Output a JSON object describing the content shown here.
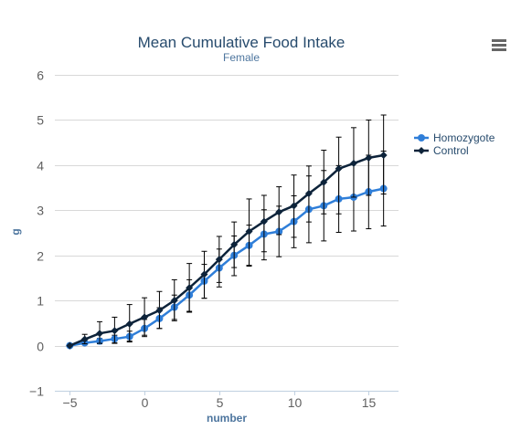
{
  "chart_data": {
    "type": "line",
    "title": "Mean Cumulative Food Intake",
    "subtitle": "Female",
    "xlabel": "number",
    "ylabel": "g",
    "xlim": [
      -6,
      17
    ],
    "ylim": [
      -1,
      6
    ],
    "xticks": [
      -5,
      0,
      5,
      10,
      15
    ],
    "yticks": [
      -1,
      0,
      1,
      2,
      3,
      4,
      5,
      6
    ],
    "grid": "horizontal",
    "legend_position": "right",
    "series": [
      {
        "name": "Homozygote",
        "color": "#2f7ed8",
        "marker": "circle",
        "x": [
          -5,
          -4,
          -3,
          -2,
          -1,
          0,
          1,
          2,
          3,
          4,
          5,
          6,
          7,
          8,
          9,
          10,
          11,
          12,
          13,
          14,
          15,
          16
        ],
        "y": [
          0.0,
          0.06,
          0.1,
          0.15,
          0.2,
          0.38,
          0.6,
          0.85,
          1.12,
          1.43,
          1.72,
          2.0,
          2.22,
          2.47,
          2.53,
          2.75,
          3.02,
          3.1,
          3.25,
          3.29,
          3.41,
          3.48
        ],
        "err_low": [
          0.0,
          0.02,
          0.04,
          0.06,
          0.08,
          0.2,
          0.38,
          0.58,
          0.76,
          1.05,
          1.3,
          1.55,
          1.76,
          1.9,
          1.97,
          2.17,
          2.28,
          2.32,
          2.51,
          2.54,
          2.59,
          2.65
        ],
        "err_high": [
          0.0,
          0.1,
          0.16,
          0.23,
          0.32,
          0.58,
          0.84,
          1.12,
          1.46,
          1.8,
          2.14,
          2.43,
          2.67,
          3.01,
          3.09,
          3.32,
          3.76,
          3.88,
          3.99,
          4.04,
          4.22,
          4.31
        ]
      },
      {
        "name": "Control",
        "color": "#0d233a",
        "marker": "diamond",
        "x": [
          -5,
          -4,
          -3,
          -2,
          -1,
          0,
          1,
          2,
          3,
          4,
          5,
          6,
          7,
          8,
          9,
          10,
          11,
          12,
          13,
          14,
          15,
          16
        ],
        "y": [
          0.0,
          0.14,
          0.27,
          0.33,
          0.48,
          0.63,
          0.78,
          1.0,
          1.28,
          1.58,
          1.91,
          2.24,
          2.53,
          2.75,
          2.96,
          3.1,
          3.37,
          3.62,
          3.92,
          4.04,
          4.16,
          4.22
        ],
        "err_low": [
          0.0,
          0.04,
          0.05,
          0.05,
          0.1,
          0.23,
          0.38,
          0.55,
          0.74,
          1.05,
          1.4,
          1.73,
          1.78,
          2.08,
          2.46,
          2.4,
          2.74,
          2.92,
          2.92,
          3.29,
          3.33,
          3.36
        ],
        "err_high": [
          0.0,
          0.25,
          0.53,
          0.63,
          0.91,
          1.06,
          1.2,
          1.46,
          1.82,
          2.09,
          2.42,
          2.74,
          3.25,
          3.33,
          3.52,
          3.78,
          3.98,
          4.33,
          4.62,
          4.83,
          5.0,
          5.11
        ]
      }
    ]
  }
}
